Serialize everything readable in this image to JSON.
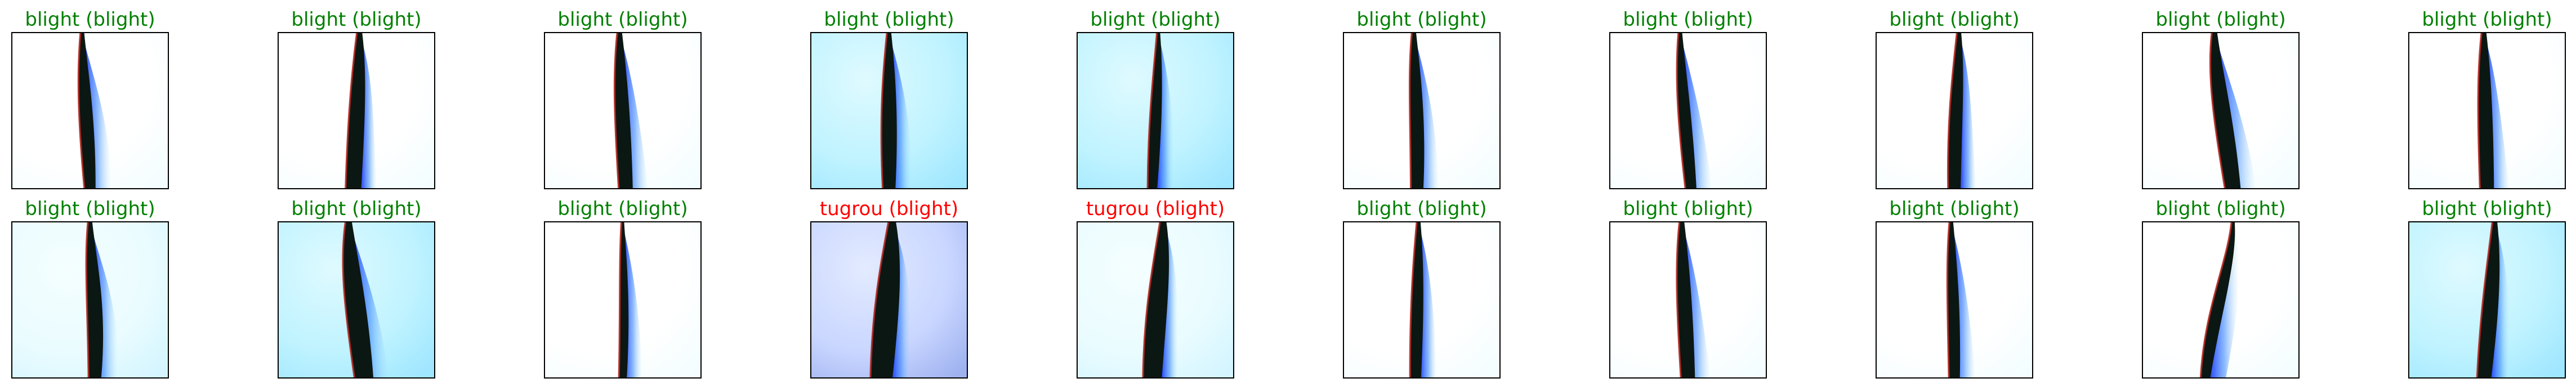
{
  "figure": {
    "colors": {
      "correct": "#008000",
      "incorrect": "#ff0000",
      "background": "#ffffff",
      "frame": "#000000"
    },
    "rows": [
      [
        {
          "predicted": "blight",
          "actual": "blight",
          "title": "blight (blight)",
          "correct": true,
          "bg": "white"
        },
        {
          "predicted": "blight",
          "actual": "blight",
          "title": "blight (blight)",
          "correct": true,
          "bg": "white"
        },
        {
          "predicted": "blight",
          "actual": "blight",
          "title": "blight (blight)",
          "correct": true,
          "bg": "white"
        },
        {
          "predicted": "blight",
          "actual": "blight",
          "title": "blight (blight)",
          "correct": true,
          "bg": "cyan"
        },
        {
          "predicted": "blight",
          "actual": "blight",
          "title": "blight (blight)",
          "correct": true,
          "bg": "cyan"
        },
        {
          "predicted": "blight",
          "actual": "blight",
          "title": "blight (blight)",
          "correct": true,
          "bg": "white"
        },
        {
          "predicted": "blight",
          "actual": "blight",
          "title": "blight (blight)",
          "correct": true,
          "bg": "white"
        },
        {
          "predicted": "blight",
          "actual": "blight",
          "title": "blight (blight)",
          "correct": true,
          "bg": "white"
        },
        {
          "predicted": "blight",
          "actual": "blight",
          "title": "blight (blight)",
          "correct": true,
          "bg": "white"
        },
        {
          "predicted": "blight",
          "actual": "blight",
          "title": "blight (blight)",
          "correct": true,
          "bg": "white"
        }
      ],
      [
        {
          "predicted": "blight",
          "actual": "blight",
          "title": "blight (blight)",
          "correct": true,
          "bg": "lightcyan"
        },
        {
          "predicted": "blight",
          "actual": "blight",
          "title": "blight (blight)",
          "correct": true,
          "bg": "cyan"
        },
        {
          "predicted": "blight",
          "actual": "blight",
          "title": "blight (blight)",
          "correct": true,
          "bg": "white"
        },
        {
          "predicted": "tugrou",
          "actual": "blight",
          "title": "tugrou (blight)",
          "correct": false,
          "bg": "blue"
        },
        {
          "predicted": "tugrou",
          "actual": "blight",
          "title": "tugrou (blight)",
          "correct": false,
          "bg": "lightcyan"
        },
        {
          "predicted": "blight",
          "actual": "blight",
          "title": "blight (blight)",
          "correct": true,
          "bg": "white"
        },
        {
          "predicted": "blight",
          "actual": "blight",
          "title": "blight (blight)",
          "correct": true,
          "bg": "white"
        },
        {
          "predicted": "blight",
          "actual": "blight",
          "title": "blight (blight)",
          "correct": true,
          "bg": "white"
        },
        {
          "predicted": "blight",
          "actual": "blight",
          "title": "blight (blight)",
          "correct": true,
          "bg": "white"
        },
        {
          "predicted": "blight",
          "actual": "blight",
          "title": "blight (blight)",
          "correct": true,
          "bg": "cyan"
        }
      ]
    ]
  }
}
